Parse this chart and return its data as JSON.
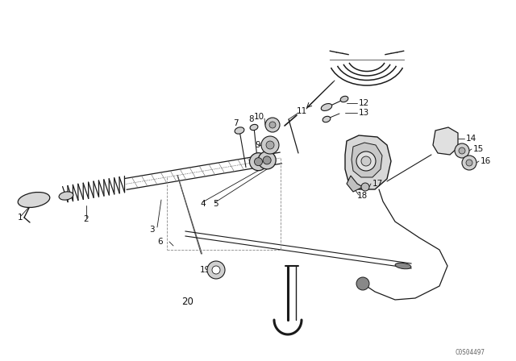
{
  "bg_color": "#ffffff",
  "line_color": "#1a1a1a",
  "label_color": "#111111",
  "fig_width": 6.4,
  "fig_height": 4.48,
  "dpi": 100,
  "watermark": "C0S04497"
}
